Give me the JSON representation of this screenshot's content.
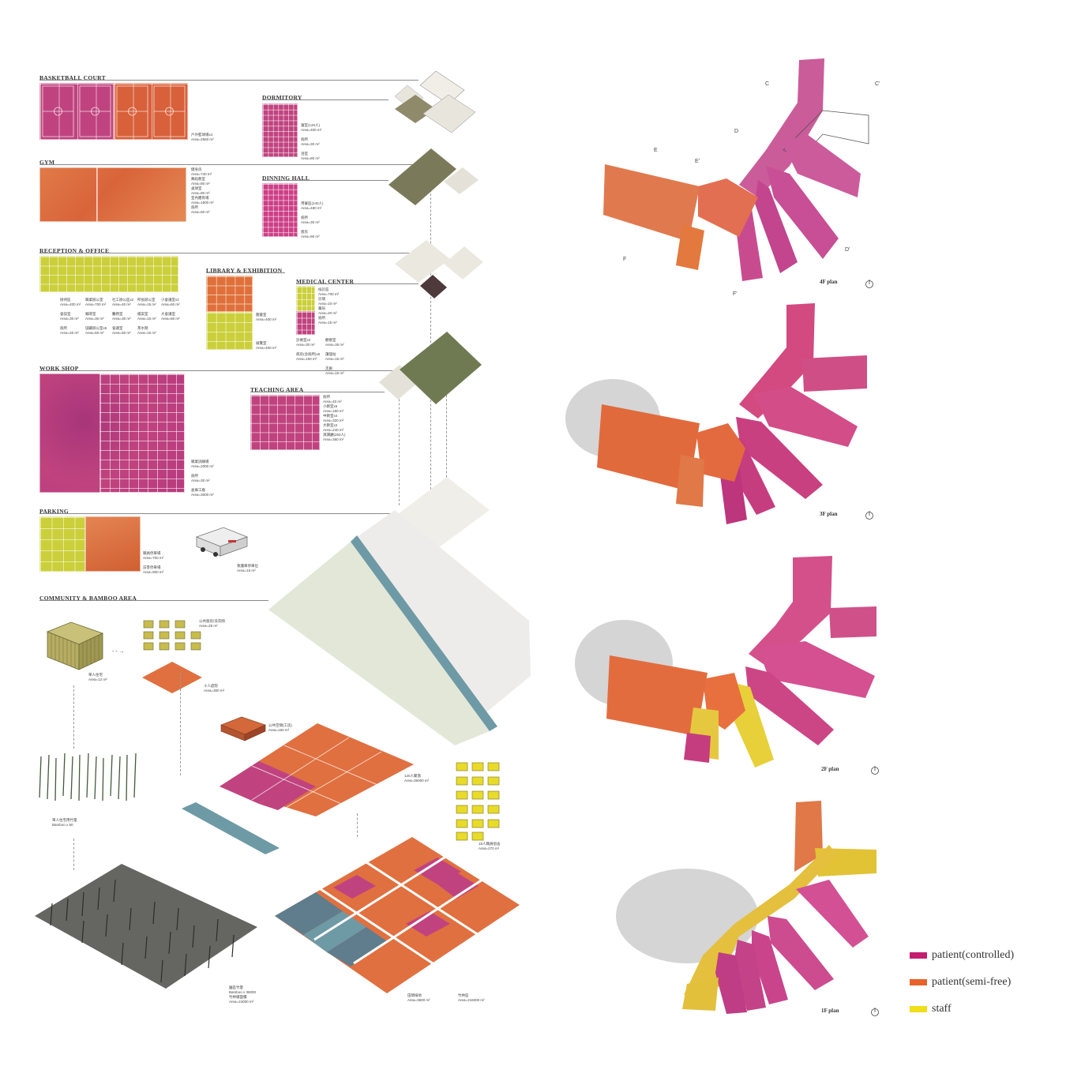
{
  "sections": {
    "basketball": {
      "title": "BASKETBALL COURT",
      "note": "戶外籃球場x4\nArea=2560 m²"
    },
    "dormitory": {
      "title": "DORMITORY",
      "note": "寝室(120人)\nArea=400 m²\n\n廁所\nArea=30 m²\n\n浴室\nArea=80 m²"
    },
    "gym": {
      "title": "GYM",
      "note": "健身房\nArea=740 m²\n舞蹈教室\nArea=80 m²\n桌球室\nArea=80 m²\n室內體育場\nArea=1500 m²\n廁所\nArea=60 m²"
    },
    "dining": {
      "title": "DINNING HALL",
      "note": "用餐區(240人)\nArea=480 m²\n\n廁所\nArea=30 m²\n\n廚房\nArea=90 m²"
    },
    "reception": {
      "title": "RECEPTION & OFFICE",
      "note1": "接待區\nArea=400 m²\n\n會談室\nArea=30 m²\n\n廁所\nArea=20 m²",
      "note2": "職業辦公室\nArea=700 m²\n\n輔導室\nArea=30 m²\n\n儲藏辦公室x5\nArea=50 m²",
      "note3": "社工辦公區x2\nArea=40 m²\n\n醫務室\nArea=30 m²\n\n會議室\nArea=50 m²",
      "note4": "所長辦公室\nArea=15 m²\n\n檔案室\nArea=15 m²\n\n茶水間\nArea=15 m²",
      "note5": "小會議室x2\nArea=60 m²\n\n大會議室\nArea=80 m²"
    },
    "library": {
      "title": "LIBRARY & EXHIBITION",
      "note1": "圖書室\nArea=400 m²",
      "note2": "展覽室\nArea=400 m²"
    },
    "medical": {
      "title": "MEDICAL CENTER",
      "note1": "候診區\nArea=700 m²\n診間\nArea=10 m²\n藥局\nArea=20 m²\n廁所\nArea=15 m²",
      "note2": "診療室x2\nArea=30 m²\n\n病房(含廁所)x5\nArea=150 m²",
      "note3": "觀察室\nArea=35 m²\n\n護理站\nArea=15 m²\n\n走廊\nArea=15 m²"
    },
    "workshop": {
      "title": "WORK SHOP",
      "note": "職業訓練場\nArea=2000 m²\n\n廁所\nArea=30 m²\n\n倉庫工廠\nArea=3000 m²"
    },
    "teaching": {
      "title": "TEACHING AREA",
      "note": "廁所\nArea=40 m²\n小教室x6\nArea=180 m²\n中教室x4\nArea=320 m²\n大教室x2\nArea=240 m²\n演講廳(250人)\nArea=360 m²"
    },
    "parking": {
      "title": "PARKING",
      "note1": "職員停車場\nArea=700 m²\n\n訪客停車場\nArea=900 m²",
      "note2": "救護車停車位\nArea=15 m²"
    },
    "community": {
      "title": "COMMUNITY & BAMBOO AREA",
      "house": "單人住宅\nArea=12 m²",
      "houses": "公共廚房/洗衣間\nArea=25 m²",
      "plaza": "十人庭院\nArea=300 m²",
      "hall": "公共空間(工房)\nArea=150 m²",
      "farm": "120人聚落\nArea=36000 m²",
      "yellow": "18人職員宿舍\nArea=270 m²",
      "bamboo": "單人住宅用竹量\nBamboo x 50",
      "forest": "園區竹量\nBamboo x 36000\n竹林總面積\nArea=24000 m²",
      "field1": "田間綠地\nArea=3600 m²",
      "field2": "竹林區\nArea=216000 m²"
    }
  },
  "plans": [
    {
      "label": "4F plan"
    },
    {
      "label": "3F plan"
    },
    {
      "label": "2F plan"
    },
    {
      "label": "1F plan"
    }
  ],
  "section_marks": [
    "C",
    "C'",
    "D",
    "E",
    "E'",
    "F",
    "F'",
    "D'"
  ],
  "legend": [
    {
      "label": "patient(controlled)",
      "color": "#c41e6e"
    },
    {
      "label": "patient(semi-free)",
      "color": "#e8632a"
    },
    {
      "label": "staff",
      "color": "#f2dd1a"
    }
  ],
  "colors": {
    "pink": "#c0437f",
    "orange": "#e0703a",
    "yellow": "#cbcf3a",
    "olive": "#8e8a6a",
    "water": "#6e9aa6"
  }
}
